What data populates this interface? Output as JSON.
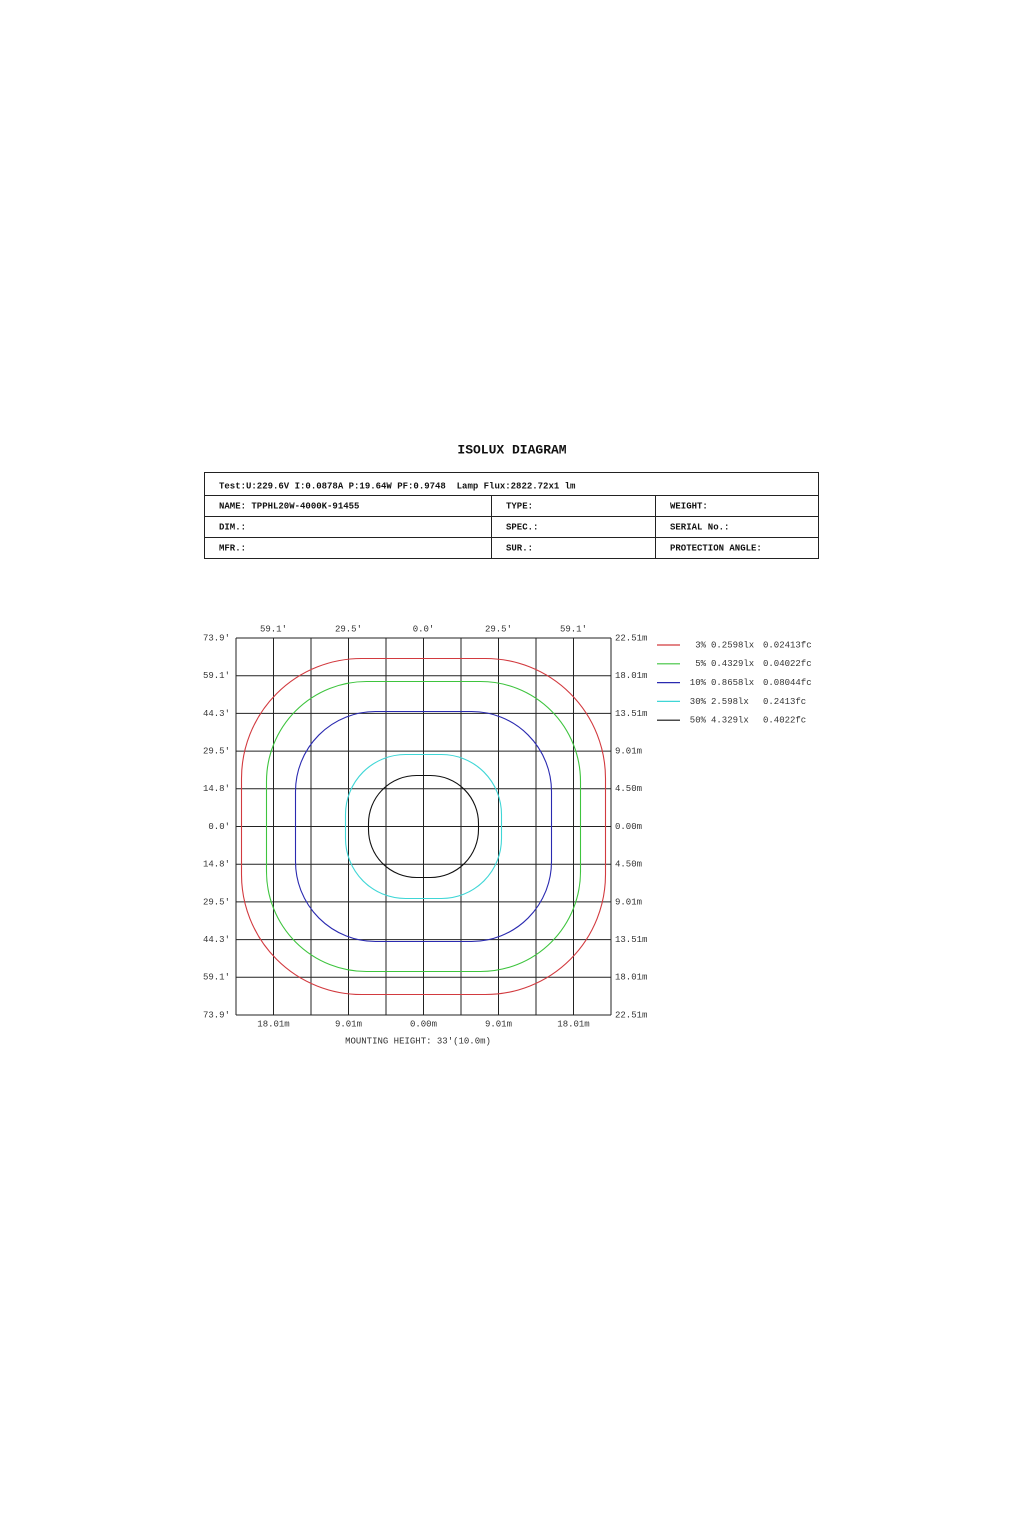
{
  "title": "ISOLUX DIAGRAM",
  "info": {
    "test": "Test:U:229.6V I:0.0878A P:19.64W PF:0.9748  Lamp Flux:2822.72x1 lm",
    "rows": [
      [
        "NAME: TPPHL20W-4000K-91455",
        "TYPE:",
        "WEIGHT:"
      ],
      [
        "DIM.:",
        "SPEC.:",
        "SERIAL No.:"
      ],
      [
        "MFR.:",
        "SUR.:",
        "PROTECTION ANGLE:"
      ]
    ]
  },
  "diagram": {
    "top_labels": [
      "59.1'",
      "29.5'",
      "0.0'",
      "29.5'",
      "59.1'"
    ],
    "left_labels": [
      "73.9'",
      "59.1'",
      "44.3'",
      "29.5'",
      "14.8'",
      "0.0'",
      "14.8'",
      "29.5'",
      "44.3'",
      "59.1'",
      "73.9'"
    ],
    "right_labels": [
      "22.51m",
      "18.01m",
      "13.51m",
      "9.01m",
      "4.50m",
      "0.00m",
      "4.50m",
      "9.01m",
      "13.51m",
      "18.01m",
      "22.51m"
    ],
    "bottom_labels": [
      "18.01m",
      "9.01m",
      "0.00m",
      "9.01m",
      "18.01m"
    ],
    "caption": "MOUNTING HEIGHT: 33'(10.0m)",
    "legend": [
      {
        "level": "3%",
        "lux": "0.2598lx",
        "fc": "0.02413fc",
        "color": "#d23a3f"
      },
      {
        "level": "5%",
        "lux": "0.4329lx",
        "fc": "0.04022fc",
        "color": "#3ec43e"
      },
      {
        "level": "10%",
        "lux": "0.8658lx",
        "fc": "0.08044fc",
        "color": "#2a2ab0"
      },
      {
        "level": "30%",
        "lux": "2.598lx",
        "fc": "0.2413fc",
        "color": "#3fd6d6"
      },
      {
        "level": "50%",
        "lux": "4.329lx",
        "fc": "0.4022fc",
        "color": "#111111"
      }
    ]
  }
}
